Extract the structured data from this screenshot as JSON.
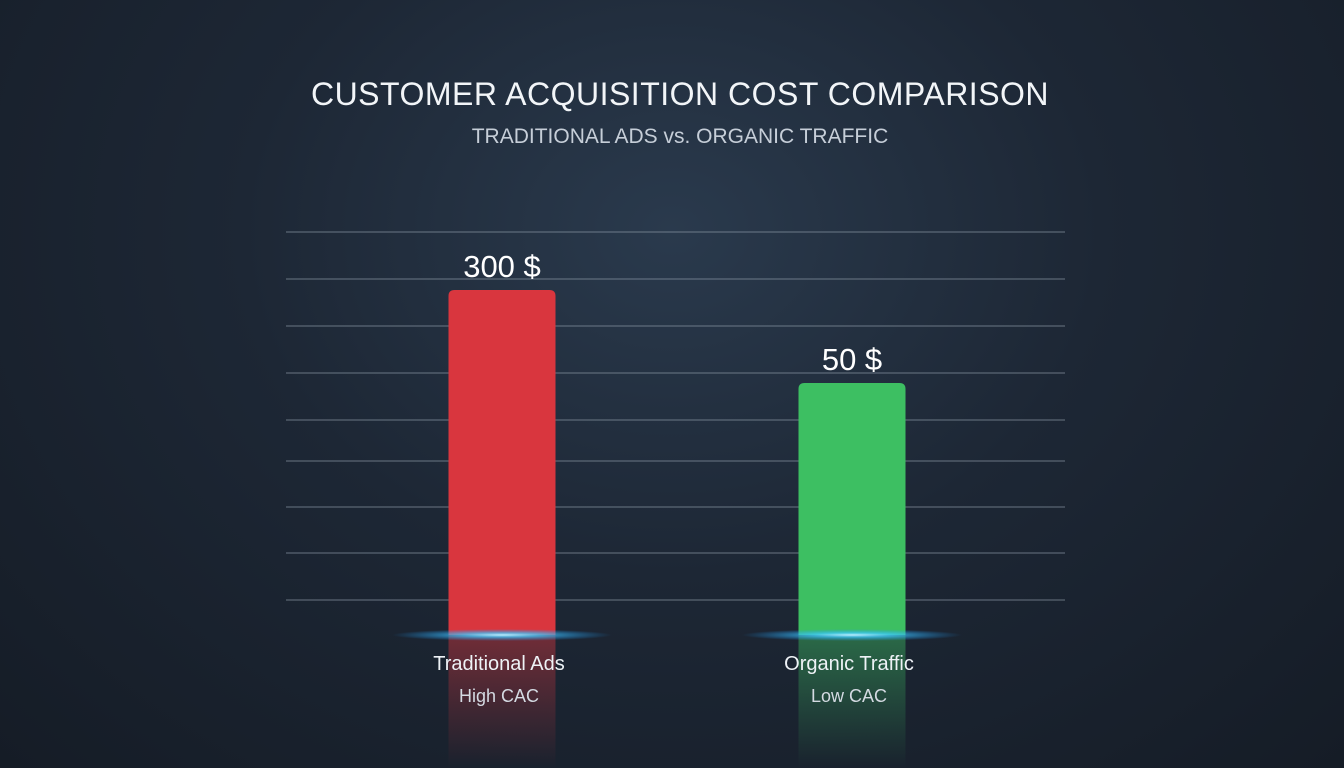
{
  "chart_data": {
    "type": "bar",
    "title": "CUSTOMER ACQUISITION COST COMPARISON",
    "subtitle": "TRADITIONAL ADS vs. ORGANIC TRAFFIC",
    "categories": [
      "Traditional Ads",
      "Organic Traffic"
    ],
    "sublabels": [
      "High CAC",
      "Low CAC"
    ],
    "values": [
      300,
      50
    ],
    "value_labels": [
      "300 $",
      "50 $"
    ],
    "colors": [
      "#d9363e",
      "#3dbf62"
    ],
    "grid": true,
    "legend": "none"
  }
}
